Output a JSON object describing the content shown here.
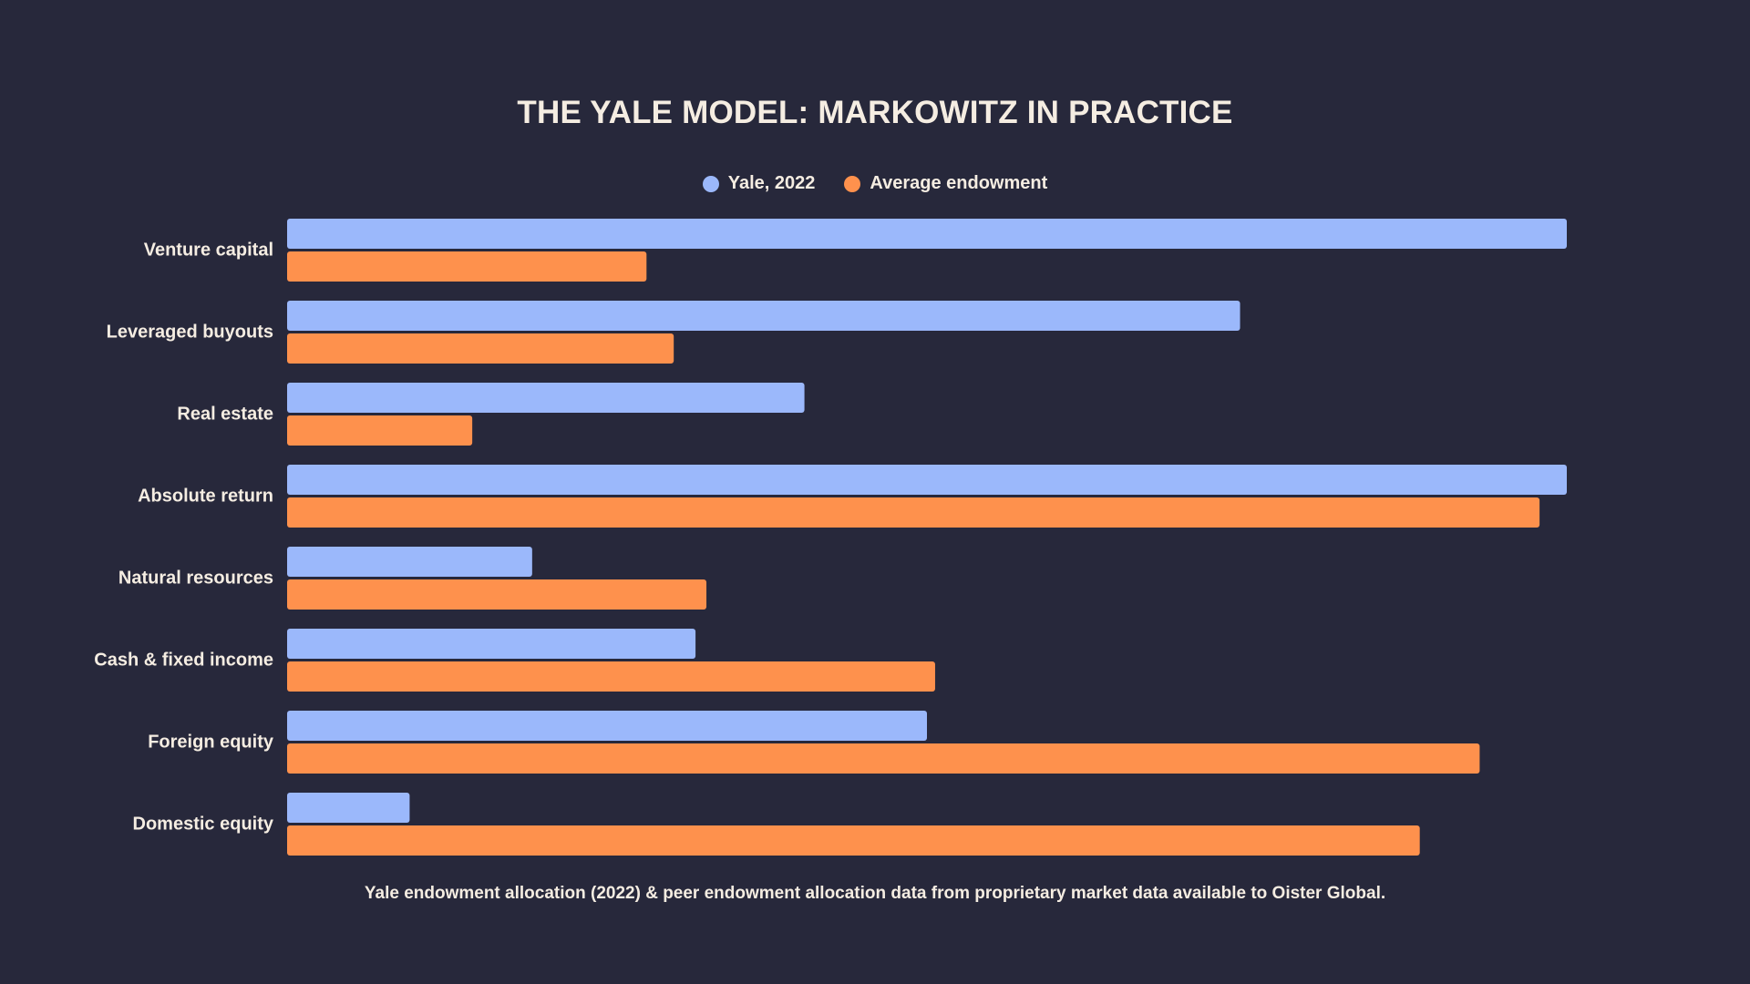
{
  "chart_data": {
    "type": "bar",
    "orientation": "horizontal",
    "title": "THE YALE MODEL: MARKOWITZ IN PRACTICE",
    "categories": [
      "Venture capital",
      "Leveraged buyouts",
      "Real estate",
      "Absolute return",
      "Natural resources",
      "Cash & fixed income",
      "Foreign equity",
      "Domestic equity"
    ],
    "series": [
      {
        "name": "Yale, 2022",
        "color": "#9bb8fb",
        "values": [
          23.5,
          17.5,
          9.5,
          23.5,
          4.5,
          7.5,
          11.75,
          2.25
        ]
      },
      {
        "name": "Average endowment",
        "color": "#fe914d",
        "values": [
          6.6,
          7.1,
          3.4,
          23.0,
          7.7,
          11.9,
          21.9,
          20.8
        ]
      }
    ],
    "xlim": [
      0,
      23.5
    ],
    "grid": false,
    "legend_position": "top-center",
    "xaxis_visible": false
  },
  "footnote": "Yale endowment allocation (2022) & peer endowment allocation data from proprietary market data available to Oister Global."
}
